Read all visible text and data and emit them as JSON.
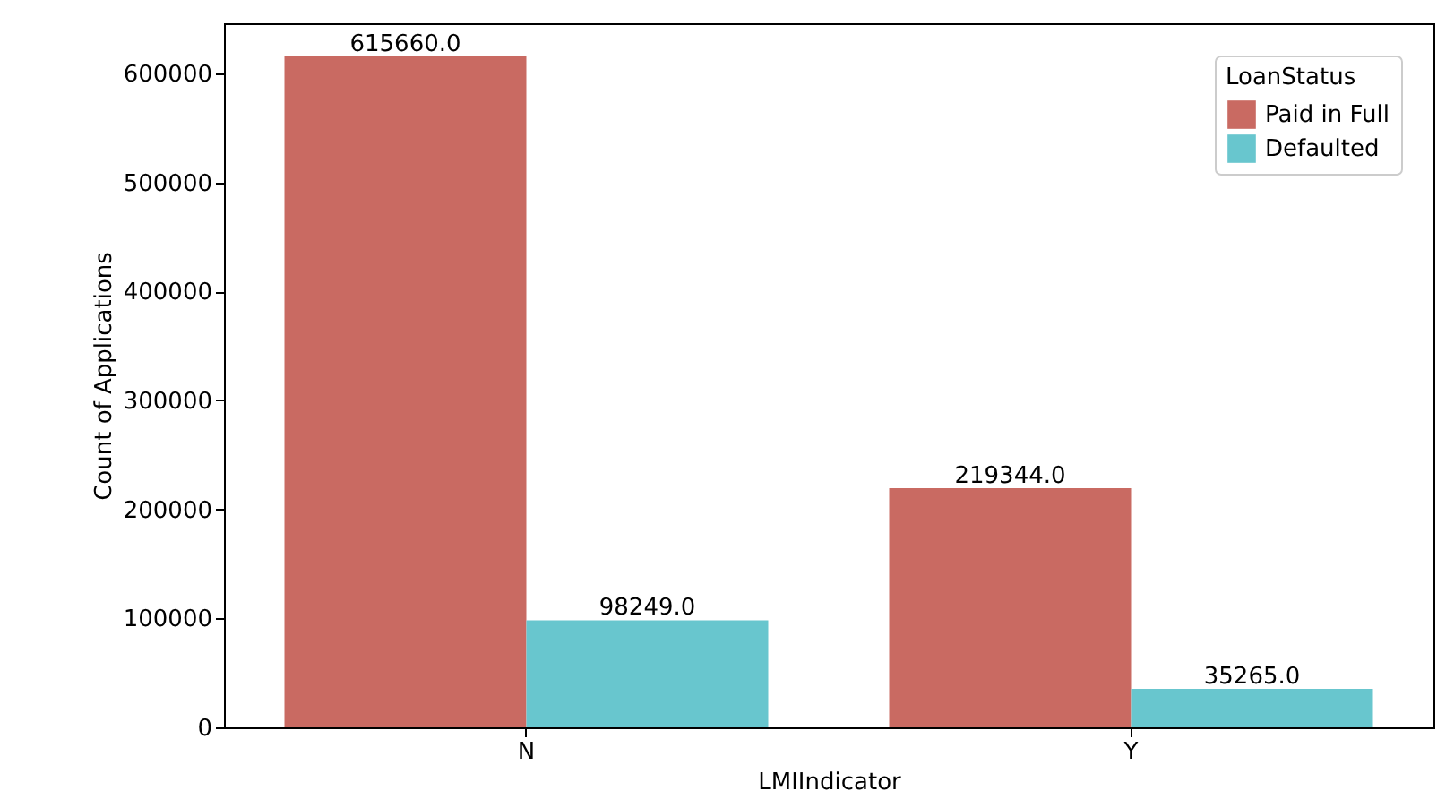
{
  "chart_data": {
    "type": "bar",
    "xlabel": "LMIIndicator",
    "ylabel": "Count of Applications",
    "legend_title": "LoanStatus",
    "categories": [
      "N",
      "Y"
    ],
    "series": [
      {
        "name": "Paid in Full",
        "color": "#c96a62",
        "values": [
          615660,
          219344
        ],
        "value_labels": [
          "615660.0",
          "219344.0"
        ]
      },
      {
        "name": "Defaulted",
        "color": "#68c6ce",
        "values": [
          98249,
          35265
        ],
        "value_labels": [
          "98249.0",
          "35265.0"
        ]
      }
    ],
    "ylim": [
      0,
      646000
    ],
    "yticks": [
      0,
      100000,
      200000,
      300000,
      400000,
      500000,
      600000
    ],
    "grid": false,
    "legend": "top right"
  }
}
